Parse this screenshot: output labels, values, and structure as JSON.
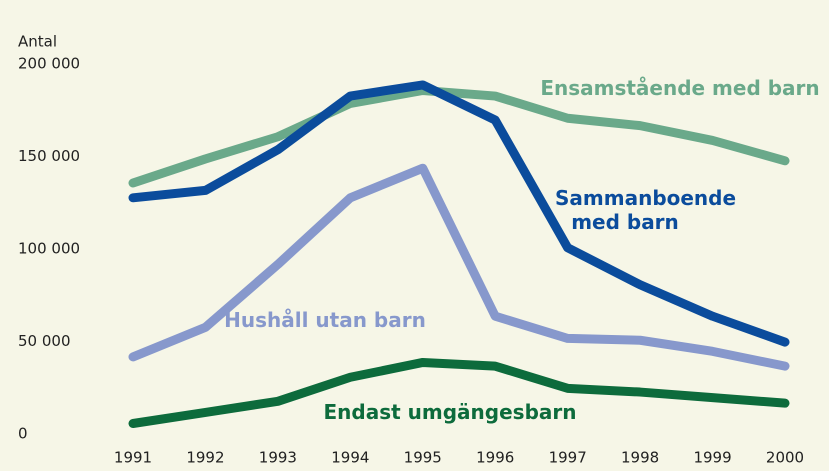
{
  "chart_data": {
    "type": "line",
    "y_axis_label": "Antal",
    "categories": [
      "1991",
      "1992",
      "1993",
      "1994",
      "1995",
      "1996",
      "1997",
      "1998",
      "1999",
      "2000"
    ],
    "ylim": [
      0,
      200000
    ],
    "yticks": [
      {
        "value": 0,
        "label": "0"
      },
      {
        "value": 50000,
        "label": "50 000"
      },
      {
        "value": 100000,
        "label": "100 000"
      },
      {
        "value": 150000,
        "label": "150 000"
      },
      {
        "value": 200000,
        "label": "200 000"
      }
    ],
    "series": [
      {
        "name": "Ensamstående med barn",
        "color": "#6aa98a",
        "values": [
          140000,
          153000,
          165000,
          183000,
          190000,
          187000,
          175000,
          171000,
          163000,
          152000
        ]
      },
      {
        "name": "Sammanboende med barn",
        "color": "#0b4c9c",
        "values": [
          132000,
          136000,
          158000,
          187000,
          193000,
          174000,
          105000,
          85000,
          68000,
          54000
        ]
      },
      {
        "name": "Hushåll utan barn",
        "color": "#8798cc",
        "values": [
          46000,
          62000,
          96000,
          132000,
          148000,
          68000,
          56000,
          55000,
          49000,
          41000
        ]
      },
      {
        "name": "Endast umgängesbarn",
        "color": "#0d6b3c",
        "values": [
          10000,
          16000,
          22000,
          35000,
          43000,
          41000,
          29000,
          27000,
          24000,
          21000
        ]
      }
    ]
  }
}
